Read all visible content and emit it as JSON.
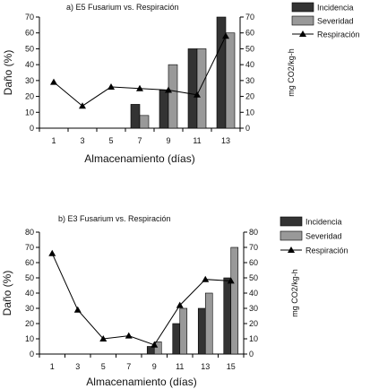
{
  "chart_data": [
    {
      "type": "bar",
      "title": "a) E5  Fusarium vs. Respiración",
      "xlabel": "Almacenamiento (días)",
      "ylabel": "Daño (%)",
      "y2label": "mg CO2/kg-h",
      "categories": [
        "1",
        "3",
        "5",
        "7",
        "9",
        "11",
        "13"
      ],
      "ylim": [
        0,
        70
      ],
      "yticks": [
        0,
        10,
        20,
        30,
        40,
        50,
        60,
        70
      ],
      "y2lim": [
        0,
        70
      ],
      "y2ticks": [
        0,
        10,
        20,
        30,
        40,
        50,
        60,
        70
      ],
      "grid": false,
      "legend_position": "top-right",
      "series": [
        {
          "name": "Incidencia",
          "kind": "bar",
          "axis": "left",
          "color": "#333333",
          "values": [
            0,
            0,
            0,
            15,
            24,
            50,
            70
          ]
        },
        {
          "name": "Severidad",
          "kind": "bar",
          "axis": "left",
          "color": "#999999",
          "values": [
            0,
            0,
            0,
            8,
            40,
            50,
            60
          ]
        },
        {
          "name": "Respiración",
          "kind": "line",
          "axis": "right",
          "marker": "triangle",
          "color": "#000000",
          "values": [
            29,
            14,
            26,
            25,
            24,
            21,
            58
          ]
        }
      ]
    },
    {
      "type": "bar",
      "title": "b) E3 Fusarium vs. Respiración",
      "xlabel": "Almacenamiento (días)",
      "ylabel": "Daño (%)",
      "y2label": "mg CO2/kg-h",
      "categories": [
        "1",
        "3",
        "5",
        "7",
        "9",
        "11",
        "13",
        "15"
      ],
      "ylim": [
        0,
        80
      ],
      "yticks": [
        0,
        10,
        20,
        30,
        40,
        50,
        60,
        70,
        80
      ],
      "y2lim": [
        0,
        80
      ],
      "y2ticks": [
        0,
        10,
        20,
        30,
        40,
        50,
        60,
        70,
        80
      ],
      "grid": false,
      "legend_position": "top-right",
      "series": [
        {
          "name": "Incidencia",
          "kind": "bar",
          "axis": "left",
          "color": "#333333",
          "values": [
            0,
            0,
            0,
            0,
            5,
            20,
            30,
            50
          ]
        },
        {
          "name": "Severidad",
          "kind": "bar",
          "axis": "left",
          "color": "#999999",
          "values": [
            0,
            0,
            0,
            0,
            8,
            30,
            40,
            70
          ]
        },
        {
          "name": "Respiración",
          "kind": "line",
          "axis": "right",
          "marker": "triangle",
          "color": "#000000",
          "values": [
            66,
            29,
            10,
            12,
            6,
            32,
            49,
            48
          ]
        }
      ]
    }
  ]
}
